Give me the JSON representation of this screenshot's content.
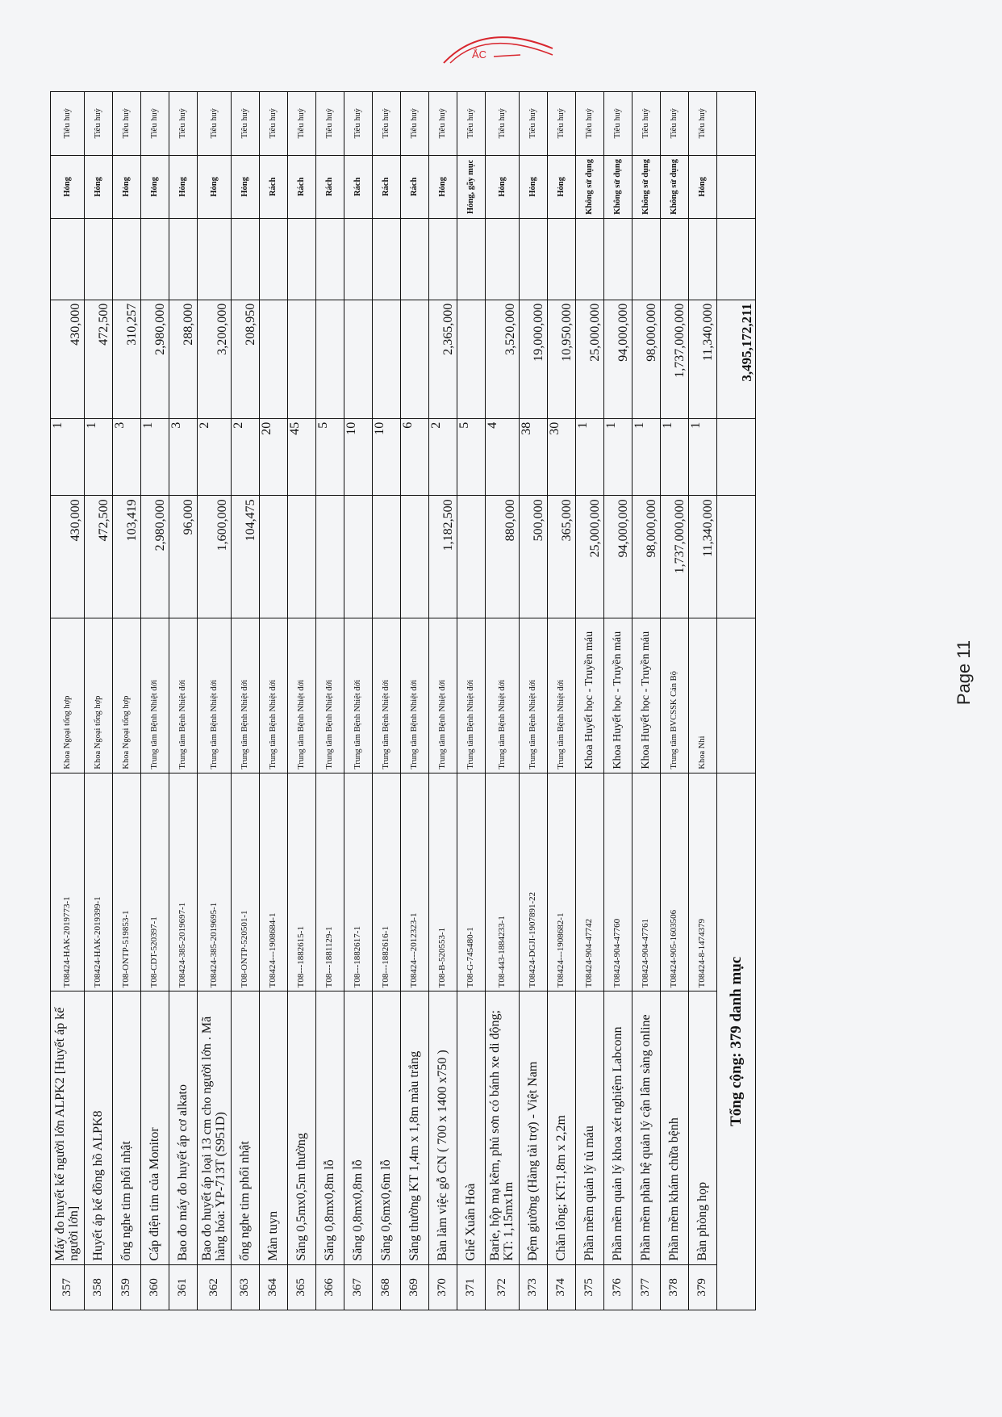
{
  "stamp": {
    "text": "ẮC",
    "color": "#d8262e"
  },
  "page_label": "Page 11",
  "rows": [
    {
      "no": "357",
      "name": "Máy đo huyết kế người lớn ALPK2 [Huyết áp kế người lớn]",
      "code": "T08424-HAK-2019773-1",
      "dept": "Khoa Ngoại tổng hợp",
      "price": "430,000",
      "qty": "1",
      "total": "430,000",
      "status": "Hỏng",
      "action": "Tiêu huỷ"
    },
    {
      "no": "358",
      "name": "Huyết áp kế đồng hồ ALPK8",
      "code": "T08424-HAK-2019399-1",
      "dept": "Khoa Ngoại tổng hợp",
      "price": "472,500",
      "qty": "1",
      "total": "472,500",
      "status": "Hỏng",
      "action": "Tiêu huỷ"
    },
    {
      "no": "359",
      "name": "ống nghe tim phổi nhật",
      "code": "T08-ONTP-519853-1",
      "dept": "Khoa Ngoại tổng hợp",
      "price": "103,419",
      "qty": "3",
      "total": "310,257",
      "status": "Hỏng",
      "action": "Tiêu huỷ"
    },
    {
      "no": "360",
      "name": "Cáp điện tim của Monitor",
      "code": "T08-CDT-520397-1",
      "dept": "Trung tâm Bệnh Nhiệt đới",
      "price": "2,980,000",
      "qty": "1",
      "total": "2,980,000",
      "status": "Hỏng",
      "action": "Tiêu huỷ"
    },
    {
      "no": "361",
      "name": "Bao đo máy đo huyết áp cơ alkato",
      "code": "T08424-385-2019697-1",
      "dept": "Trung tâm Bệnh Nhiệt đới",
      "price": "96,000",
      "qty": "3",
      "total": "288,000",
      "status": "Hỏng",
      "action": "Tiêu huỷ"
    },
    {
      "no": "362",
      "name": "Bao đo huyết áp loại 13 cm cho người lớn . Mã hàng hóa: YP-713T (S951D)",
      "code": "T08424-385-2019695-1",
      "dept": "Trung tâm Bệnh Nhiệt đới",
      "price": "1,600,000",
      "qty": "2",
      "total": "3,200,000",
      "status": "Hỏng",
      "action": "Tiêu huỷ"
    },
    {
      "no": "363",
      "name": "ống nghe tim phổi nhật",
      "code": "T08-ONTP-520501-1",
      "dept": "Trung tâm Bệnh Nhiệt đới",
      "price": "104,475",
      "qty": "2",
      "total": "208,950",
      "status": "Hỏng",
      "action": "Tiêu huỷ"
    },
    {
      "no": "364",
      "name": "Màn tuyn",
      "code": "T08424---1908684-1",
      "dept": "Trung tâm Bệnh Nhiệt đới",
      "price": "",
      "qty": "20",
      "total": "",
      "status": "Rách",
      "action": "Tiêu huỷ"
    },
    {
      "no": "365",
      "name": "Săng 0,5mx0,5m thường",
      "code": "T08---1882615-1",
      "dept": "Trung tâm Bệnh Nhiệt đới",
      "price": "",
      "qty": "45",
      "total": "",
      "status": "Rách",
      "action": "Tiêu huỷ"
    },
    {
      "no": "366",
      "name": "Săng 0,8mx0,8m lỗ",
      "code": "T08---1881129-1",
      "dept": "Trung tâm Bệnh Nhiệt đới",
      "price": "",
      "qty": "5",
      "total": "",
      "status": "Rách",
      "action": "Tiêu huỷ"
    },
    {
      "no": "367",
      "name": "Săng 0,8mx0,8m lỗ",
      "code": "T08---1882617-1",
      "dept": "Trung tâm Bệnh Nhiệt đới",
      "price": "",
      "qty": "10",
      "total": "",
      "status": "Rách",
      "action": "Tiêu huỷ"
    },
    {
      "no": "368",
      "name": "Săng 0,6mx0,6m lỗ",
      "code": "T08---1882616-1",
      "dept": "Trung tâm Bệnh Nhiệt đới",
      "price": "",
      "qty": "10",
      "total": "",
      "status": "Rách",
      "action": "Tiêu huỷ"
    },
    {
      "no": "369",
      "name": "Săng thường KT 1,4m x 1,8m màu trắng",
      "code": "T08424---2012323-1",
      "dept": "Trung tâm Bệnh Nhiệt đới",
      "price": "",
      "qty": "6",
      "total": "",
      "status": "Rách",
      "action": "Tiêu huỷ"
    },
    {
      "no": "370",
      "name": "Bàn làm việc gỗ CN ( 700 x 1400 x750 )",
      "code": "T08-B-520553-1",
      "dept": "Trung tâm Bệnh Nhiệt đới",
      "price": "1,182,500",
      "qty": "2",
      "total": "2,365,000",
      "status": "Hỏng",
      "action": "Tiêu huỷ"
    },
    {
      "no": "371",
      "name": "Ghế Xuân Hoà",
      "code": "T08-G-745480-1",
      "dept": "Trung tâm Bệnh Nhiệt đới",
      "price": "",
      "qty": "5",
      "total": "",
      "status": "Hỏng, gãy mục",
      "action": "Tiêu huỷ"
    },
    {
      "no": "372",
      "name": "Barie, hộp mạ kẽm, phủ sơn có bánh xe di động; KT: 1,15mx1m",
      "code": "T08-443-1884233-1",
      "dept": "Trung tâm Bệnh Nhiệt đới",
      "price": "880,000",
      "qty": "4",
      "total": "3,520,000",
      "status": "Hỏng",
      "action": "Tiêu huỷ"
    },
    {
      "no": "373",
      "name": "Đệm giường (Hàng tài trợ) - Việt Nam",
      "code": "T08424-DGJI-1907891-22",
      "dept": "Trung tâm Bệnh Nhiệt đới",
      "price": "500,000",
      "qty": "38",
      "total": "19,000,000",
      "status": "Hỏng",
      "action": "Tiêu huỷ"
    },
    {
      "no": "374",
      "name": "Chăn lông; KT:1,8m x 2,2m",
      "code": "T08424---1908682-1",
      "dept": "Trung tâm Bệnh Nhiệt đới",
      "price": "365,000",
      "qty": "30",
      "total": "10,950,000",
      "status": "Hỏng",
      "action": "Tiêu huỷ"
    },
    {
      "no": "375",
      "name": "Phần mềm quản lý tủ máu",
      "code": "T08424-904-47742",
      "dept": "Khoa Huyết học - Truyền máu",
      "price": "25,000,000",
      "qty": "1",
      "total": "25,000,000",
      "status": "Không sử dụng",
      "action": "Tiêu huỷ"
    },
    {
      "no": "376",
      "name": "Phần mềm quản lý khoa xét nghiệm Labconn",
      "code": "T08424-904-47760",
      "dept": "Khoa Huyết học - Truyền máu",
      "price": "94,000,000",
      "qty": "1",
      "total": "94,000,000",
      "status": "Không sử dụng",
      "action": "Tiêu huỷ"
    },
    {
      "no": "377",
      "name": "Phần mềm phần hệ quản lý cận lâm sàng online",
      "code": "T08424-904-47761",
      "dept": "Khoa Huyết học - Truyền máu",
      "price": "98,000,000",
      "qty": "1",
      "total": "98,000,000",
      "status": "Không sử dụng",
      "action": "Tiêu huỷ"
    },
    {
      "no": "378",
      "name": "Phần mềm khám chữa bệnh",
      "code": "T08424-905-1603506",
      "dept": "Trung tâm BVCSSK Cán Bộ",
      "price": "1,737,000,000",
      "qty": "1",
      "total": "1,737,000,000",
      "status": "Không sử dụng",
      "action": "Tiêu huỷ"
    },
    {
      "no": "379",
      "name": "Bàn phòng họp",
      "code": "T08424-8-1474379",
      "dept": "Khoa Nhi",
      "price": "11,340,000",
      "qty": "1",
      "total": "11,340,000",
      "status": "Hỏng",
      "action": "Tiêu huỷ"
    }
  ],
  "footer": {
    "label": "Tổng cộng: 379 danh mục",
    "grand_total": "3,495,172,211"
  }
}
